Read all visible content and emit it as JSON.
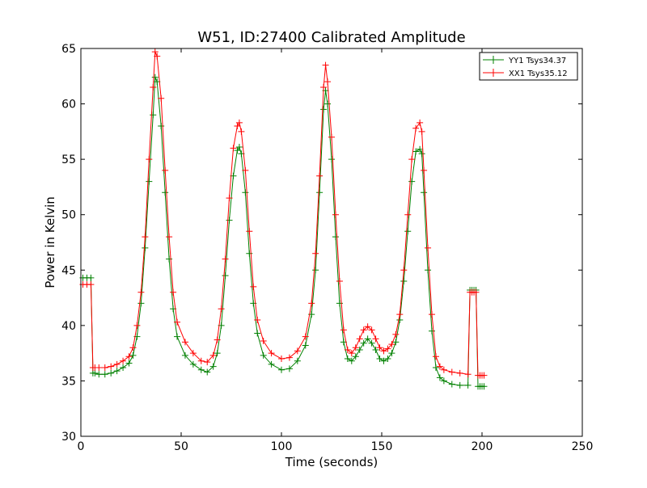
{
  "chart_data": {
    "type": "line",
    "title": "W51, ID:27400 Calibrated Amplitude",
    "xlabel": "Time (seconds)",
    "ylabel": "Power in Kelvin",
    "xlim": [
      0,
      250
    ],
    "ylim": [
      30,
      65
    ],
    "xticks": [
      0,
      50,
      100,
      150,
      200,
      250
    ],
    "yticks": [
      30,
      35,
      40,
      45,
      50,
      55,
      60,
      65
    ],
    "xtick_labels": [
      "0",
      "50",
      "100",
      "150",
      "200",
      "250"
    ],
    "ytick_labels": [
      "30",
      "35",
      "40",
      "45",
      "50",
      "55",
      "60",
      "65"
    ],
    "grid": false,
    "legend_position": "top-right",
    "marker": "+",
    "series": [
      {
        "name": "YY1 Tsys34.37",
        "color": "#008000",
        "x": [
          1,
          3,
          5,
          6,
          7,
          9,
          12,
          15,
          18,
          21,
          24,
          26,
          28,
          30,
          32,
          34,
          36,
          37,
          38,
          40,
          42,
          44,
          46,
          48,
          52,
          56,
          60,
          63,
          66,
          68,
          70,
          72,
          74,
          76,
          78,
          79,
          80,
          82,
          84,
          86,
          88,
          91,
          95,
          100,
          104,
          108,
          112,
          115,
          117,
          119,
          121,
          122,
          123,
          125,
          127,
          129,
          131,
          133,
          135,
          137,
          139,
          141,
          143,
          145,
          147,
          149,
          151,
          153,
          155,
          157,
          159,
          161,
          163,
          165,
          167,
          169,
          170,
          171,
          173,
          175,
          177,
          179,
          181,
          185,
          189,
          193,
          194,
          195,
          196,
          197,
          198,
          199,
          200,
          201
        ],
        "y": [
          44.3,
          44.3,
          44.3,
          35.7,
          35.7,
          35.6,
          35.6,
          35.7,
          35.9,
          36.2,
          36.6,
          37.3,
          39,
          42,
          47,
          53,
          59,
          62.4,
          62,
          58,
          52,
          46,
          41.5,
          39,
          37.3,
          36.5,
          36,
          35.8,
          36.3,
          37.5,
          40,
          44.5,
          49.5,
          53.5,
          55.8,
          56.1,
          55.5,
          52,
          46.5,
          42,
          39.3,
          37.3,
          36.5,
          36,
          36.1,
          36.8,
          38.2,
          41,
          45,
          52,
          59.5,
          61.2,
          60,
          55,
          48,
          42,
          38.5,
          37,
          36.8,
          37.2,
          37.8,
          38.4,
          38.8,
          38.4,
          37.8,
          37,
          36.8,
          37,
          37.5,
          38.5,
          40.5,
          44,
          48.5,
          53,
          55.7,
          55.9,
          55.5,
          52,
          45,
          39.5,
          36.2,
          35.3,
          35,
          34.7,
          34.6,
          34.6,
          43.2,
          43.2,
          43.2,
          43.2,
          34.5,
          34.5,
          34.5,
          34.5
        ]
      },
      {
        "name": "XX1 Tsys35.12",
        "color": "#ff0000",
        "x": [
          1,
          3,
          5,
          6,
          7,
          9,
          12,
          15,
          18,
          21,
          24,
          26,
          28,
          30,
          32,
          34,
          36,
          37,
          38,
          40,
          42,
          44,
          46,
          48,
          52,
          56,
          60,
          63,
          66,
          68,
          70,
          72,
          74,
          76,
          78,
          79,
          80,
          82,
          84,
          86,
          88,
          91,
          95,
          100,
          104,
          108,
          112,
          115,
          117,
          119,
          121,
          122,
          123,
          125,
          127,
          129,
          131,
          133,
          135,
          137,
          139,
          141,
          143,
          145,
          147,
          149,
          151,
          153,
          155,
          157,
          159,
          161,
          163,
          165,
          167,
          169,
          170,
          171,
          173,
          175,
          177,
          179,
          181,
          185,
          189,
          193,
          194,
          195,
          196,
          197,
          198,
          199,
          200,
          201
        ],
        "y": [
          43.7,
          43.7,
          43.7,
          36.2,
          36.2,
          36.2,
          36.2,
          36.3,
          36.5,
          36.8,
          37.2,
          38,
          40,
          43,
          48,
          55,
          61.5,
          64.7,
          64.3,
          60.5,
          54,
          48,
          43,
          40.3,
          38.5,
          37.5,
          36.8,
          36.7,
          37.3,
          38.7,
          41.5,
          46,
          51.5,
          56,
          58,
          58.3,
          57.5,
          54,
          48.5,
          43.5,
          40.5,
          38.6,
          37.5,
          37,
          37.1,
          37.7,
          39,
          42,
          46.5,
          53.5,
          61.5,
          63.5,
          62,
          57,
          50,
          44,
          39.6,
          37.8,
          37.5,
          38,
          38.8,
          39.6,
          39.9,
          39.6,
          38.8,
          38,
          37.7,
          37.9,
          38.3,
          39.2,
          41,
          45,
          50,
          55,
          57.8,
          58.3,
          57.5,
          54,
          47,
          41,
          37.2,
          36.3,
          36,
          35.8,
          35.7,
          35.6,
          43,
          43,
          43,
          43,
          35.5,
          35.5,
          35.5,
          35.5
        ]
      }
    ]
  }
}
